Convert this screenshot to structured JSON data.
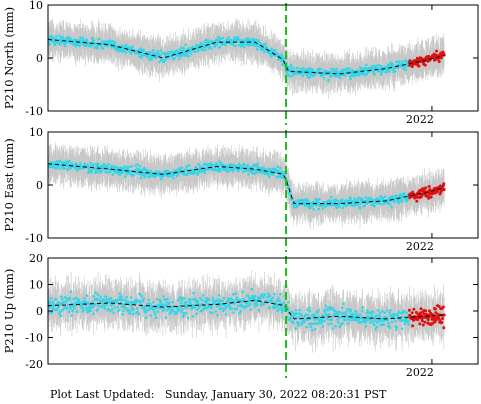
{
  "footer": {
    "label": "Plot Last Updated:",
    "value": "Sunday, January 30, 2022 08:20:31 PST"
  },
  "chart_data": [
    {
      "type": "scatter",
      "title": "",
      "xlabel": "",
      "ylabel": "P210 North (mm)",
      "ylim": [
        -10,
        10
      ],
      "yticks": [
        -10,
        0,
        10
      ],
      "x_range": [
        2019.5,
        2022.3
      ],
      "x_tick_label": "2022",
      "event_line_x": 2021.05,
      "grid": false,
      "points_per_year": 365,
      "noise": 0.9,
      "error_bar": 3.0,
      "trend": {
        "x": [
          2019.5,
          2019.9,
          2020.25,
          2020.6,
          2020.85,
          2021.04,
          2021.06,
          2021.4,
          2021.7,
          2021.95,
          2022.08
        ],
        "y": [
          3.5,
          2.5,
          0.0,
          3.0,
          3.0,
          -0.5,
          -2.5,
          -3.0,
          -2.0,
          -0.5,
          0.5
        ]
      },
      "recent_points": {
        "start_x": 2021.85,
        "count": 60
      }
    },
    {
      "type": "scatter",
      "title": "",
      "xlabel": "",
      "ylabel": "P210 East (mm)",
      "ylim": [
        -10,
        10
      ],
      "yticks": [
        -10,
        0,
        10
      ],
      "x_range": [
        2019.5,
        2022.3
      ],
      "x_tick_label": "2022",
      "event_line_x": 2021.05,
      "grid": false,
      "points_per_year": 365,
      "noise": 0.9,
      "error_bar": 3.0,
      "trend": {
        "x": [
          2019.5,
          2019.9,
          2020.25,
          2020.6,
          2020.85,
          2021.04,
          2021.1,
          2021.4,
          2021.7,
          2021.95,
          2022.08
        ],
        "y": [
          4.0,
          3.0,
          2.0,
          3.5,
          3.0,
          2.0,
          -3.5,
          -3.5,
          -3.0,
          -1.5,
          -0.5
        ]
      },
      "recent_points": {
        "start_x": 2021.85,
        "count": 60
      }
    },
    {
      "type": "scatter",
      "title": "",
      "xlabel": "",
      "ylabel": "P210 Up (mm)",
      "ylim": [
        -20,
        20
      ],
      "yticks": [
        -20,
        -10,
        0,
        10,
        20
      ],
      "x_range": [
        2019.5,
        2022.3
      ],
      "x_tick_label": "2022",
      "event_line_x": 2021.05,
      "grid": false,
      "points_per_year": 365,
      "noise": 3.5,
      "error_bar": 7.0,
      "trend": {
        "x": [
          2019.5,
          2019.9,
          2020.25,
          2020.6,
          2020.85,
          2021.04,
          2021.1,
          2021.4,
          2021.7,
          2021.95,
          2022.08
        ],
        "y": [
          2.0,
          3.0,
          1.5,
          2.5,
          4.0,
          2.0,
          -3.0,
          -2.0,
          -3.0,
          -2.0,
          -1.5
        ]
      },
      "recent_points": {
        "start_x": 2021.85,
        "count": 60
      }
    }
  ],
  "colors": {
    "points": "#33d6e8",
    "recent_points": "#e01010",
    "error_bars": "#c8c8c8",
    "trend": "#000000",
    "event_line": "#22bb22",
    "axes": "#000000"
  }
}
